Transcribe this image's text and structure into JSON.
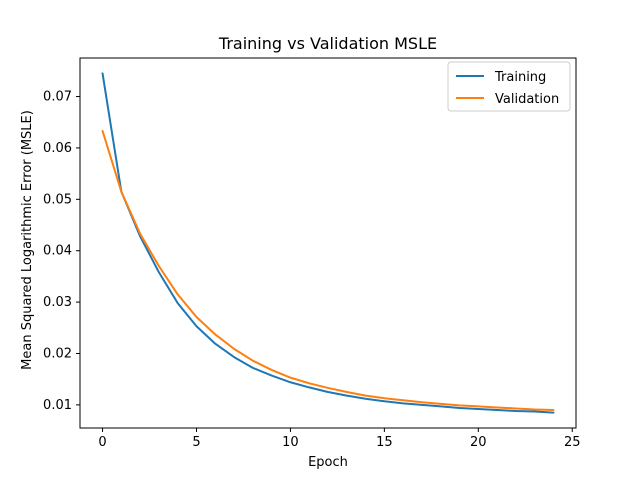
{
  "chart_data": {
    "type": "line",
    "title": "Training vs Validation MSLE",
    "xlabel": "Epoch",
    "ylabel": "Mean Squared Logarithmic Error (MSLE)",
    "xlim": [
      -1.2,
      25.2
    ],
    "ylim": [
      0.0055,
      0.0775
    ],
    "x": [
      0,
      1,
      2,
      3,
      4,
      5,
      6,
      7,
      8,
      9,
      10,
      11,
      12,
      13,
      14,
      15,
      16,
      17,
      18,
      19,
      20,
      21,
      22,
      23,
      24
    ],
    "xticks": [
      0,
      5,
      10,
      15,
      20,
      25
    ],
    "xtick_labels": [
      "0",
      "5",
      "10",
      "15",
      "20",
      "25"
    ],
    "yticks": [
      0.01,
      0.02,
      0.03,
      0.04,
      0.05,
      0.06,
      0.07
    ],
    "ytick_labels": [
      "0.01",
      "0.02",
      "0.03",
      "0.04",
      "0.05",
      "0.06",
      "0.07"
    ],
    "grid": false,
    "legend_position": "top-right",
    "series": [
      {
        "name": "Training",
        "color": "#1f77b4",
        "values": [
          0.0745,
          0.0515,
          0.0428,
          0.0358,
          0.0298,
          0.0253,
          0.0219,
          0.0193,
          0.0172,
          0.0157,
          0.0144,
          0.0134,
          0.0125,
          0.0118,
          0.0112,
          0.0107,
          0.0103,
          0.01,
          0.0097,
          0.0094,
          0.0092,
          0.009,
          0.0088,
          0.0087,
          0.0085
        ]
      },
      {
        "name": "Validation",
        "color": "#ff7f0e",
        "values": [
          0.0633,
          0.0515,
          0.0433,
          0.037,
          0.0315,
          0.0271,
          0.0237,
          0.0209,
          0.0186,
          0.0168,
          0.0153,
          0.0142,
          0.0133,
          0.0125,
          0.0118,
          0.0113,
          0.0109,
          0.0105,
          0.0102,
          0.0099,
          0.0097,
          0.0095,
          0.0093,
          0.0091,
          0.009
        ]
      }
    ]
  }
}
